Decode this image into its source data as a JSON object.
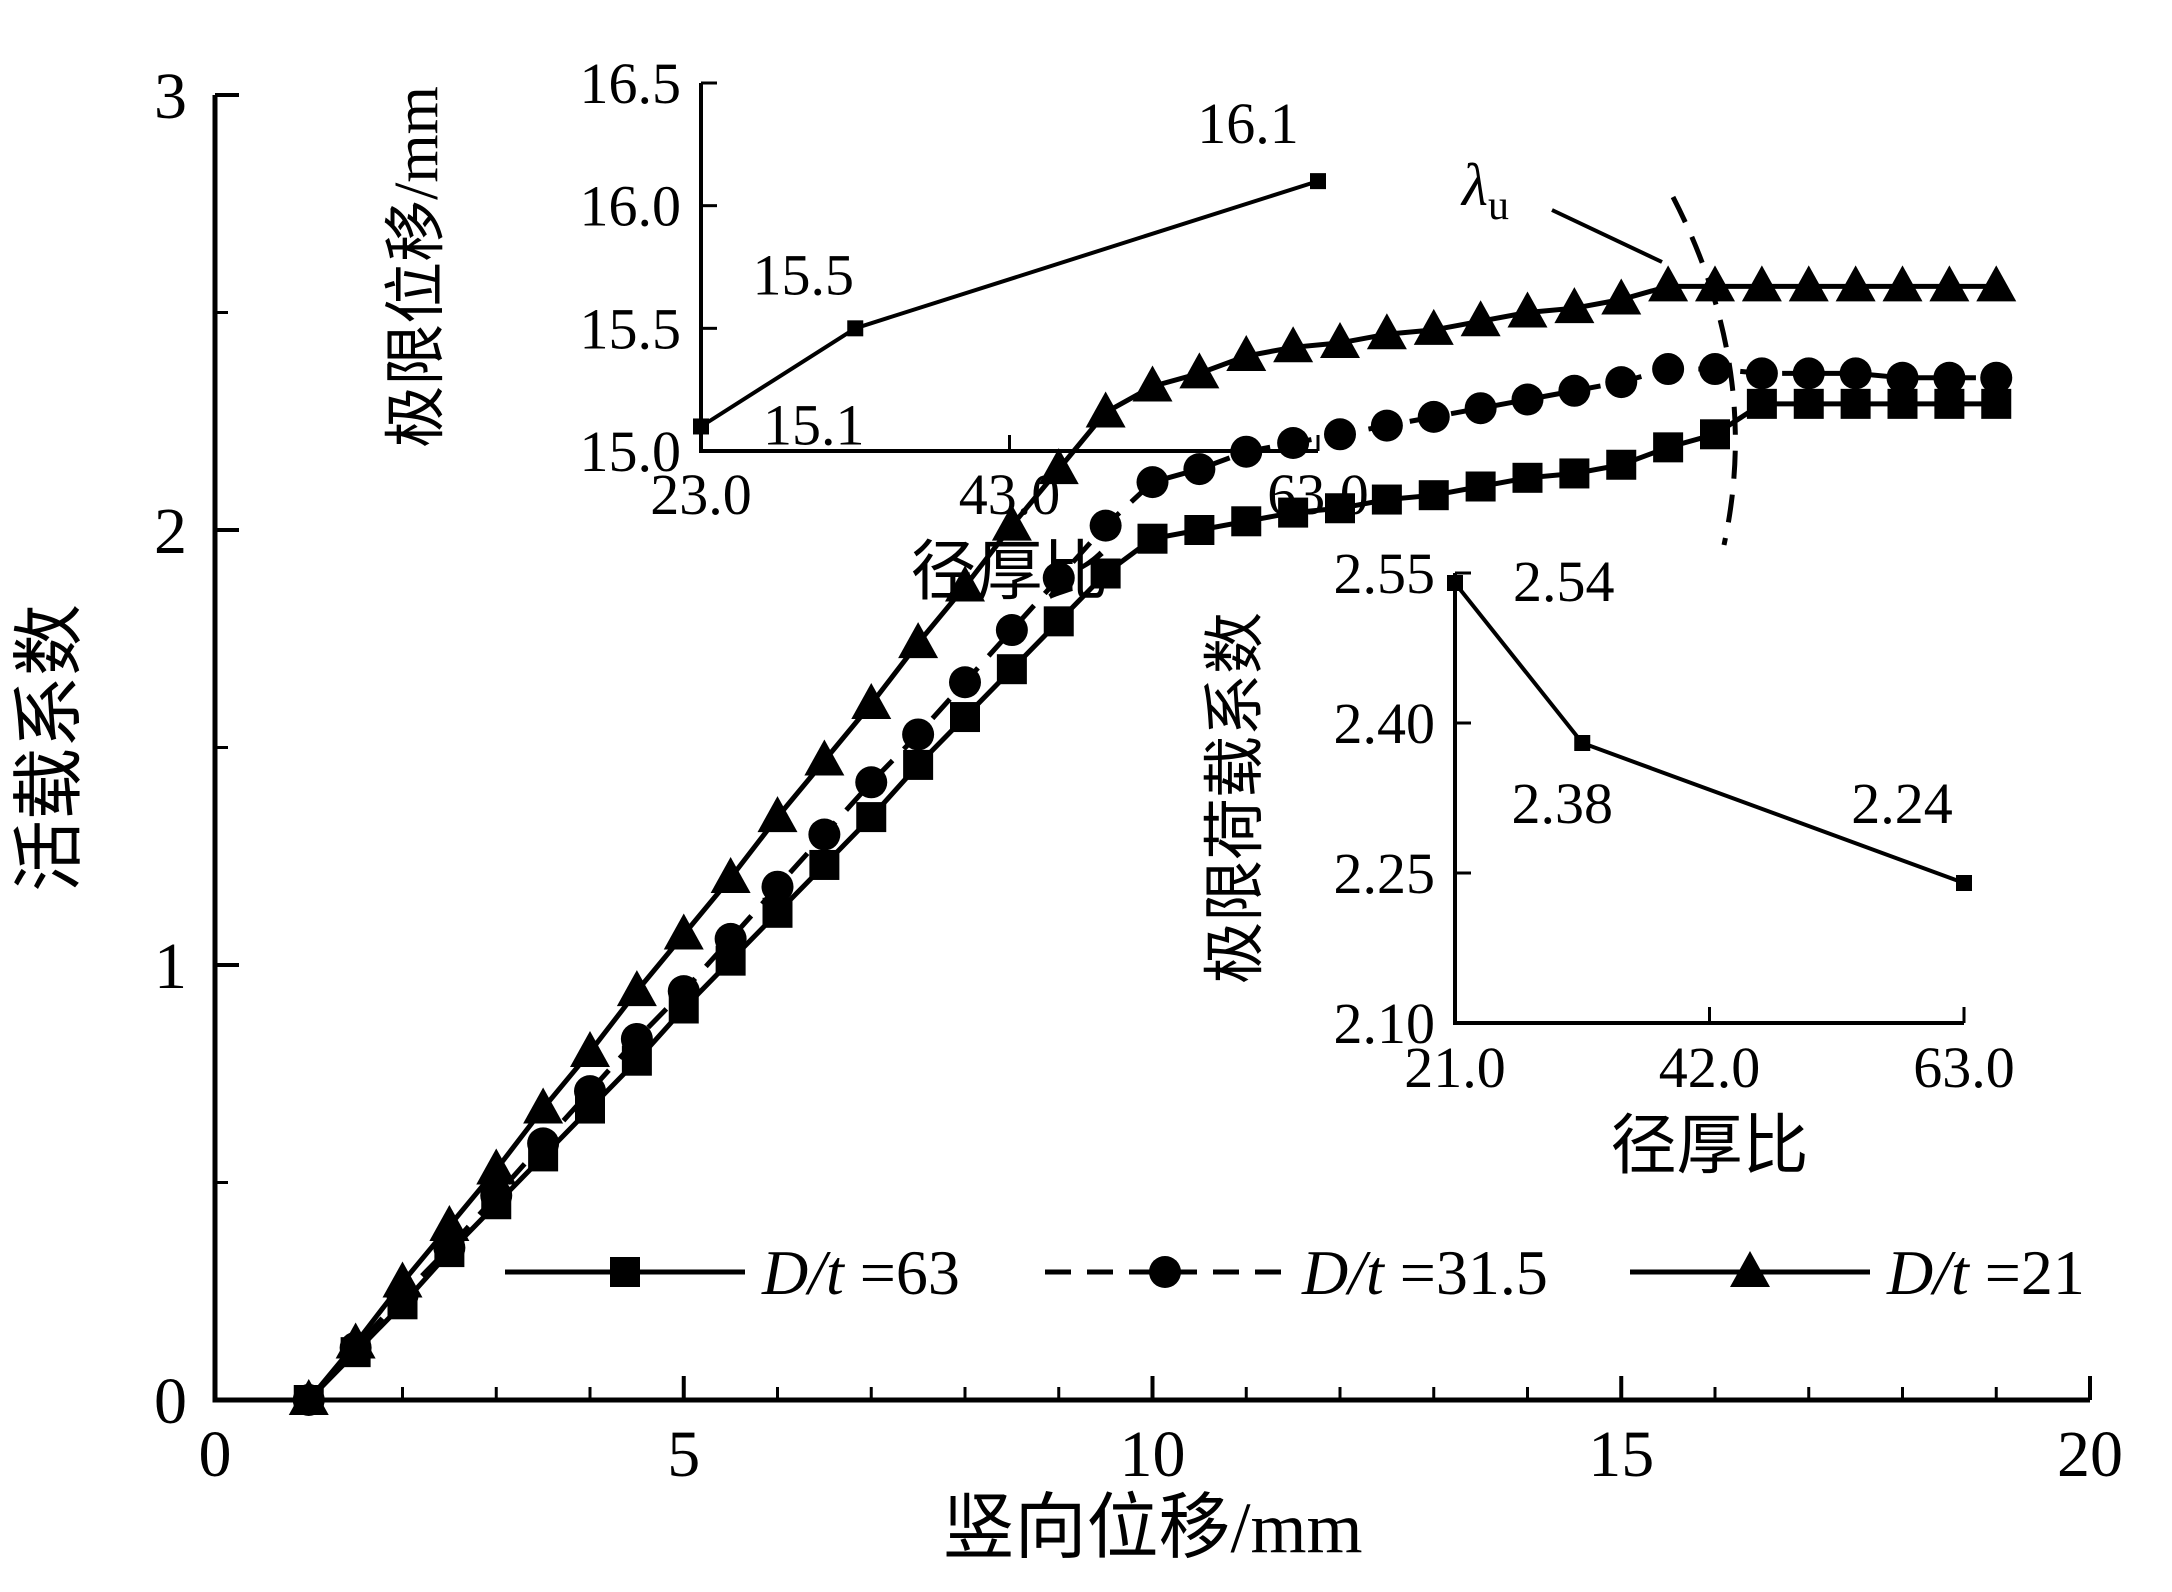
{
  "figure": {
    "background": "#ffffff",
    "ink": "#000000"
  },
  "chart_data": [
    {
      "id": "main",
      "type": "line",
      "title": "",
      "xlabel": "竖向位移/mm",
      "ylabel": "活载系数",
      "xlim": [
        0,
        20
      ],
      "ylim": [
        0,
        3
      ],
      "grid": false,
      "legend_position": "bottom-inside",
      "xticks": {
        "values": [
          0,
          5,
          10,
          15,
          20
        ],
        "labels": [
          "0",
          "5",
          "10",
          "15",
          "20"
        ],
        "minor_step": 1
      },
      "yticks": {
        "values": [
          0,
          1,
          2,
          3
        ],
        "labels": [
          "0",
          "1",
          "2",
          "3"
        ],
        "minor_step": 0.5
      },
      "annotation": {
        "base": "λ",
        "sub": "u"
      },
      "series": [
        {
          "name": "D/t =63",
          "marker": "square",
          "line": "solid",
          "x": [
            1,
            1.5,
            2,
            2.5,
            3,
            3.5,
            4,
            4.5,
            5,
            5.5,
            6,
            6.5,
            7,
            7.5,
            8,
            8.5,
            9,
            9.5,
            10,
            10.5,
            11,
            11.5,
            12,
            12.5,
            13,
            13.5,
            14,
            14.5,
            15,
            15.5,
            16,
            16.5,
            17,
            17.5,
            18,
            18.5,
            19
          ],
          "y": [
            0,
            0.11,
            0.22,
            0.34,
            0.45,
            0.56,
            0.67,
            0.78,
            0.9,
            1.01,
            1.12,
            1.23,
            1.34,
            1.46,
            1.57,
            1.68,
            1.79,
            1.9,
            1.98,
            2,
            2.02,
            2.04,
            2.05,
            2.07,
            2.08,
            2.1,
            2.12,
            2.13,
            2.15,
            2.19,
            2.22,
            2.29,
            2.29,
            2.29,
            2.29,
            2.29,
            2.29
          ]
        },
        {
          "name": "D/t =31.5",
          "marker": "circle",
          "line": "dashed",
          "x": [
            1,
            1.5,
            2,
            2.5,
            3,
            3.5,
            4,
            4.5,
            5,
            5.5,
            6,
            6.5,
            7,
            7.5,
            8,
            8.5,
            9,
            9.5,
            10,
            10.5,
            11,
            11.5,
            12,
            12.5,
            13,
            13.5,
            14,
            14.5,
            15,
            15.5,
            16,
            16.5,
            17,
            17.5,
            18,
            18.5,
            19
          ],
          "y": [
            0,
            0.12,
            0.24,
            0.35,
            0.47,
            0.59,
            0.71,
            0.83,
            0.94,
            1.06,
            1.18,
            1.3,
            1.42,
            1.53,
            1.65,
            1.77,
            1.89,
            2.01,
            2.11,
            2.14,
            2.18,
            2.2,
            2.22,
            2.24,
            2.26,
            2.28,
            2.3,
            2.32,
            2.34,
            2.37,
            2.37,
            2.36,
            2.36,
            2.36,
            2.35,
            2.35,
            2.35
          ]
        },
        {
          "name": "D/t =21",
          "marker": "triangle",
          "line": "solid",
          "x": [
            1,
            1.5,
            2,
            2.5,
            3,
            3.5,
            4,
            4.5,
            5,
            5.5,
            6,
            6.5,
            7,
            7.5,
            8,
            8.5,
            9,
            9.5,
            10,
            10.5,
            11,
            11.5,
            12,
            12.5,
            13,
            13.5,
            14,
            14.5,
            15,
            15.5,
            16,
            16.5,
            17,
            17.5,
            18,
            18.5,
            19
          ],
          "y": [
            0,
            0.13,
            0.27,
            0.4,
            0.53,
            0.67,
            0.8,
            0.94,
            1.07,
            1.2,
            1.34,
            1.47,
            1.6,
            1.74,
            1.87,
            2.01,
            2.14,
            2.27,
            2.33,
            2.36,
            2.4,
            2.42,
            2.43,
            2.45,
            2.46,
            2.48,
            2.5,
            2.51,
            2.53,
            2.56,
            2.56,
            2.56,
            2.56,
            2.56,
            2.56,
            2.56,
            2.56
          ]
        }
      ]
    },
    {
      "id": "inset-displacement",
      "type": "line",
      "xlabel": "径厚比",
      "ylabel": "极限位移/mm",
      "xlim": [
        23,
        63
      ],
      "ylim": [
        15.0,
        16.5
      ],
      "grid": false,
      "xticks": {
        "values": [
          23,
          43,
          63
        ],
        "labels": [
          "23.0",
          "43.0",
          "63.0"
        ]
      },
      "yticks": {
        "values": [
          15.0,
          15.5,
          16.0,
          16.5
        ],
        "labels": [
          "15.0",
          "15.5",
          "16.0",
          "16.5"
        ]
      },
      "series": [
        {
          "name": "ultimate-displacement",
          "marker": "square",
          "line": "solid",
          "x": [
            23,
            33,
            63
          ],
          "y": [
            15.1,
            15.5,
            16.1
          ],
          "point_labels": [
            "15.1",
            "15.5",
            "16.1"
          ]
        }
      ]
    },
    {
      "id": "inset-load-factor",
      "type": "line",
      "xlabel": "径厚比",
      "ylabel": "极限荷载系数",
      "xlim": [
        21,
        63
      ],
      "ylim": [
        2.1,
        2.55
      ],
      "grid": false,
      "xticks": {
        "values": [
          21,
          42,
          63
        ],
        "labels": [
          "21.0",
          "42.0",
          "63.0"
        ]
      },
      "yticks": {
        "values": [
          2.1,
          2.25,
          2.4,
          2.55
        ],
        "labels": [
          "2.10",
          "2.25",
          "2.40",
          "2.55"
        ]
      },
      "series": [
        {
          "name": "ultimate-load-factor",
          "marker": "square",
          "line": "solid",
          "x": [
            21,
            31.5,
            63
          ],
          "y": [
            2.54,
            2.38,
            2.24
          ],
          "point_labels": [
            "2.54",
            "2.38",
            "2.24"
          ]
        }
      ]
    }
  ]
}
